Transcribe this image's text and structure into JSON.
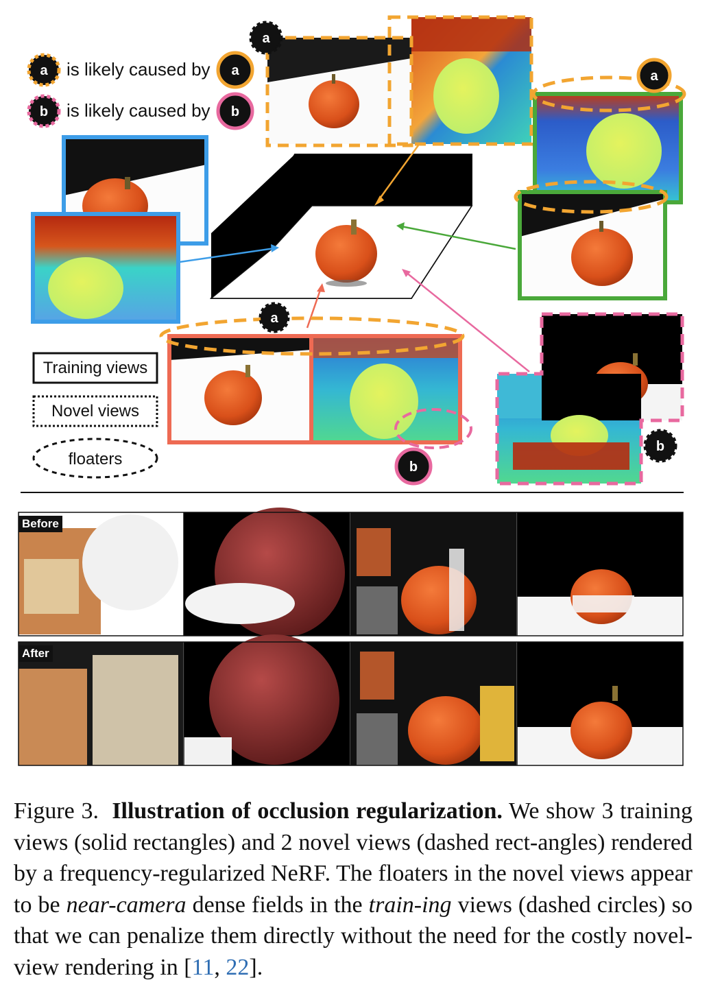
{
  "legend": {
    "caused_by_a": "is likely caused by",
    "caused_by_b": "is likely caused by",
    "badge_a": "a",
    "badge_b": "b",
    "training_views": "Training views",
    "novel_views": "Novel views",
    "floaters": "floaters"
  },
  "rows": {
    "before_label": "Before",
    "after_label": "After"
  },
  "caption": {
    "figure_label": "Figure 3.",
    "title": "Illustration of occlusion regularization.",
    "text_1": "We show 3 training views (solid rectangles) and 2 novel views (dashed rect-angles) rendered by a frequency-regularized NeRF. The floaters in the novel views appear to be",
    "em_1": "near-camera",
    "text_2": "dense fields in the",
    "em_2": "train-ing",
    "text_3": "views (dashed circles) so that we can penalize them directly without the need for the costly novel-view rendering in [",
    "cite_1": "11",
    "cite_sep": ", ",
    "cite_2": "22",
    "text_4": "]."
  },
  "colors": {
    "orange": "#f2a531",
    "pink": "#e8699f",
    "blue": "#3d9de8",
    "green": "#4aa83a",
    "red": "#ee6a53",
    "pumpkin": "#e0551c",
    "link": "#2e6db3"
  }
}
